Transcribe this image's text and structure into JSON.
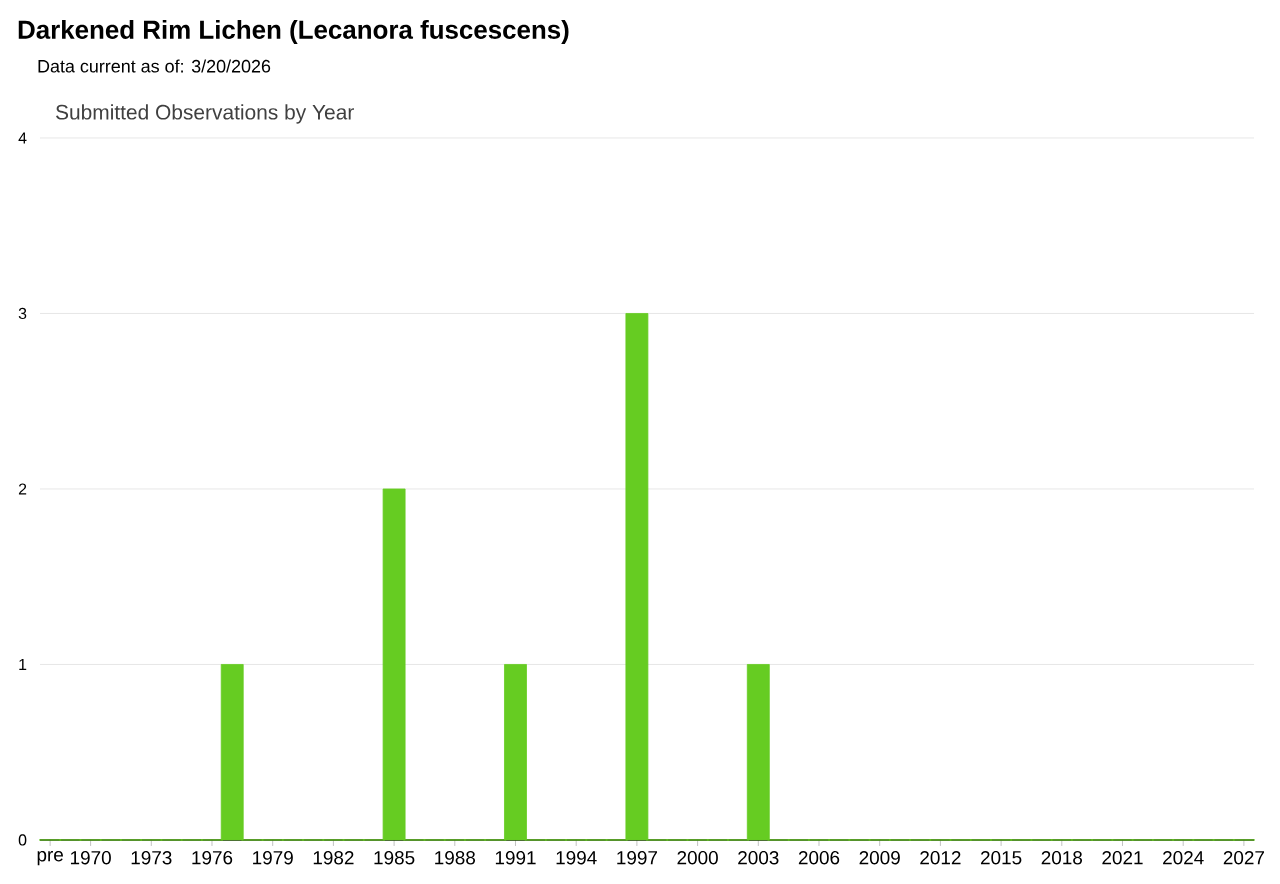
{
  "chart_data": {
    "type": "bar",
    "title": "Darkened Rim Lichen   (Lecanora fuscescens)",
    "subtitle": "Submitted Observations by Year",
    "annotations": [
      "Data current as of: 3/20/2026"
    ],
    "categories": [
      "pre",
      null,
      "1970",
      null,
      null,
      "1973",
      null,
      null,
      "1976",
      null,
      null,
      "1979",
      null,
      null,
      "1982",
      null,
      null,
      "1985",
      null,
      null,
      "1988",
      null,
      null,
      "1991",
      null,
      null,
      "1994",
      null,
      null,
      "1997",
      null,
      null,
      "2000",
      null,
      null,
      "2003",
      null,
      null,
      "2006",
      null,
      null,
      "2009",
      null,
      null,
      "2012",
      null,
      null,
      "2015",
      null,
      null,
      "2018",
      null,
      null,
      "2021",
      null,
      null,
      "2024",
      null,
      null,
      "2027"
    ],
    "values": [
      0,
      0,
      0,
      0,
      0,
      0,
      0,
      0,
      0,
      1,
      0,
      0,
      0,
      0,
      0,
      0,
      0,
      2,
      0,
      0,
      0,
      0,
      0,
      1,
      0,
      0,
      0,
      0,
      0,
      3,
      0,
      0,
      0,
      0,
      0,
      1,
      0,
      0,
      0,
      0,
      0,
      0,
      0,
      0,
      0,
      0,
      0,
      0,
      0,
      0,
      0,
      0,
      0,
      0,
      0,
      0,
      0,
      0,
      0,
      0
    ],
    "color": "#66cc22",
    "ylim": [
      0,
      4
    ],
    "yticks": [
      0,
      1,
      2,
      3,
      4
    ],
    "grid": "y"
  }
}
